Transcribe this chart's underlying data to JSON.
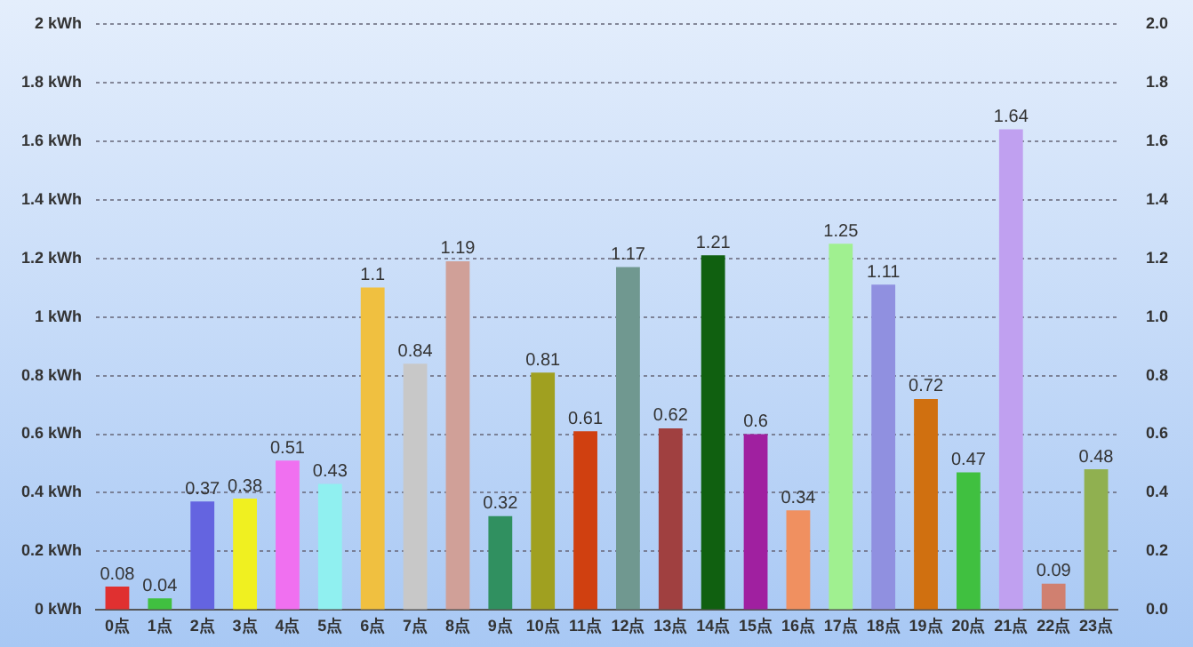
{
  "chart_data": {
    "type": "bar",
    "categories": [
      "0点",
      "1点",
      "2点",
      "3点",
      "4点",
      "5点",
      "6点",
      "7点",
      "8点",
      "9点",
      "10点",
      "11点",
      "12点",
      "13点",
      "14点",
      "15点",
      "16点",
      "17点",
      "18点",
      "19点",
      "20点",
      "21点",
      "22点",
      "23点"
    ],
    "values": [
      0.08,
      0.04,
      0.37,
      0.38,
      0.51,
      0.43,
      1.1,
      0.84,
      1.19,
      0.32,
      0.81,
      0.61,
      1.17,
      0.62,
      1.21,
      0.6,
      0.34,
      1.25,
      1.11,
      0.72,
      0.47,
      1.64,
      0.09,
      0.48
    ],
    "colors": [
      "#e03030",
      "#40c040",
      "#6464e0",
      "#f0f020",
      "#f070f0",
      "#90f0f0",
      "#f0c040",
      "#c8c8c8",
      "#d0a098",
      "#309060",
      "#a0a020",
      "#d04010",
      "#709890",
      "#a04040",
      "#106010",
      "#a020a0",
      "#f09060",
      "#a0f090",
      "#9090e0",
      "#d07010",
      "#40c040",
      "#c0a0f0",
      "#d08070",
      "#90b050"
    ],
    "ylim": [
      0,
      2
    ],
    "yticks": [
      {
        "value": 0,
        "label": "0 kWh"
      },
      {
        "value": 0.2,
        "label": "0.2 kWh"
      },
      {
        "value": 0.4,
        "label": "0.4 kWh"
      },
      {
        "value": 0.6,
        "label": "0.6 kWh"
      },
      {
        "value": 0.8,
        "label": "0.8 kWh"
      },
      {
        "value": 1,
        "label": "1 kWh"
      },
      {
        "value": 1.2,
        "label": "1.2 kWh"
      },
      {
        "value": 1.4,
        "label": "1.4 kWh"
      },
      {
        "value": 1.6,
        "label": "1.6 kWh"
      },
      {
        "value": 1.8,
        "label": "1.8 kWh"
      },
      {
        "value": 2,
        "label": "2 kWh"
      }
    ],
    "y2lim": [
      0,
      2
    ],
    "y2ticks": [
      {
        "value": 0,
        "label": "0.0"
      },
      {
        "value": 0.2,
        "label": "0.2"
      },
      {
        "value": 0.4,
        "label": "0.4"
      },
      {
        "value": 0.6,
        "label": "0.6"
      },
      {
        "value": 0.8,
        "label": "0.8"
      },
      {
        "value": 1,
        "label": "1.0"
      },
      {
        "value": 1.2,
        "label": "1.2"
      },
      {
        "value": 1.4,
        "label": "1.4"
      },
      {
        "value": 1.6,
        "label": "1.6"
      },
      {
        "value": 1.8,
        "label": "1.8"
      },
      {
        "value": 2,
        "label": "2.0"
      }
    ],
    "grid": "y",
    "legend": false,
    "data_labels": true
  }
}
